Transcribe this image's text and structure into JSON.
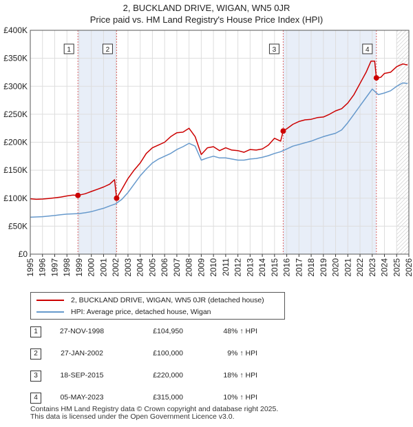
{
  "chart_data": {
    "type": "line",
    "title": "2, BUCKLAND DRIVE, WIGAN, WN5 0JR",
    "subtitle": "Price paid vs. HM Land Registry's House Price Index (HPI)",
    "xlim": [
      1995,
      2026
    ],
    "ylim": [
      0,
      400000
    ],
    "y_ticks": [
      {
        "value": 0,
        "label": "£0"
      },
      {
        "value": 50000,
        "label": "£50K"
      },
      {
        "value": 100000,
        "label": "£100K"
      },
      {
        "value": 150000,
        "label": "£150K"
      },
      {
        "value": 200000,
        "label": "£200K"
      },
      {
        "value": 250000,
        "label": "£250K"
      },
      {
        "value": 300000,
        "label": "£300K"
      },
      {
        "value": 350000,
        "label": "£350K"
      },
      {
        "value": 400000,
        "label": "£400K"
      }
    ],
    "x_ticks": [
      "1995",
      "1996",
      "1997",
      "1998",
      "1999",
      "2000",
      "2001",
      "2002",
      "2003",
      "2004",
      "2005",
      "2006",
      "2007",
      "2008",
      "2009",
      "2010",
      "2011",
      "2012",
      "2013",
      "2014",
      "2015",
      "2016",
      "2017",
      "2018",
      "2019",
      "2020",
      "2021",
      "2022",
      "2023",
      "2024",
      "2025",
      "2026"
    ],
    "shaded_spans": [
      [
        1998.9,
        2002.07
      ],
      [
        2015.71,
        2023.34
      ]
    ],
    "hatched_from": 2025.0,
    "series": [
      {
        "name": "2, BUCKLAND DRIVE, WIGAN, WN5 0JR (detached house)",
        "color": "#cc0000",
        "x": [
          1995.0,
          1995.5,
          1996.0,
          1996.5,
          1997.0,
          1997.5,
          1998.0,
          1998.5,
          1998.9,
          1999.5,
          2000.0,
          2000.5,
          2001.0,
          2001.5,
          2001.9,
          2002.07,
          2002.5,
          2003.0,
          2003.5,
          2004.0,
          2004.5,
          2005.0,
          2005.5,
          2006.0,
          2006.5,
          2007.0,
          2007.5,
          2008.0,
          2008.5,
          2009.0,
          2009.5,
          2010.0,
          2010.5,
          2011.0,
          2011.5,
          2012.0,
          2012.5,
          2013.0,
          2013.5,
          2014.0,
          2014.5,
          2015.0,
          2015.5,
          2015.71,
          2016.0,
          2016.5,
          2017.0,
          2017.5,
          2018.0,
          2018.5,
          2019.0,
          2019.5,
          2020.0,
          2020.5,
          2021.0,
          2021.5,
          2022.0,
          2022.5,
          2022.9,
          2023.2,
          2023.34,
          2023.7,
          2024.0,
          2024.5,
          2025.0,
          2025.5,
          2025.9
        ],
        "values": [
          99000,
          98000,
          98500,
          99500,
          100500,
          102000,
          104000,
          105500,
          104950,
          108000,
          112000,
          116000,
          120000,
          125000,
          133000,
          100000,
          116000,
          135000,
          150000,
          163000,
          180000,
          190000,
          195000,
          200000,
          210000,
          217000,
          218000,
          225000,
          210000,
          178000,
          190000,
          192000,
          185000,
          190000,
          186000,
          185000,
          182000,
          187000,
          186000,
          188000,
          195000,
          207000,
          202000,
          220000,
          224000,
          232000,
          237000,
          240000,
          241000,
          244000,
          245000,
          250000,
          256000,
          260000,
          270000,
          285000,
          305000,
          325000,
          345000,
          345000,
          315000,
          316000,
          323000,
          325000,
          335000,
          340000,
          338000
        ]
      },
      {
        "name": "HPI: Average price, detached house, Wigan",
        "color": "#6699cc",
        "x": [
          1995.0,
          1995.5,
          1996.0,
          1996.5,
          1997.0,
          1997.5,
          1998.0,
          1998.5,
          1999.0,
          1999.5,
          2000.0,
          2000.5,
          2001.0,
          2001.5,
          2002.0,
          2002.5,
          2003.0,
          2003.5,
          2004.0,
          2004.5,
          2005.0,
          2005.5,
          2006.0,
          2006.5,
          2007.0,
          2007.5,
          2008.0,
          2008.5,
          2009.0,
          2009.5,
          2010.0,
          2010.5,
          2011.0,
          2011.5,
          2012.0,
          2012.5,
          2013.0,
          2013.5,
          2014.0,
          2014.5,
          2015.0,
          2015.5,
          2016.0,
          2016.5,
          2017.0,
          2017.5,
          2018.0,
          2018.5,
          2019.0,
          2019.5,
          2020.0,
          2020.5,
          2021.0,
          2021.5,
          2022.0,
          2022.5,
          2023.0,
          2023.5,
          2024.0,
          2024.5,
          2025.0,
          2025.5,
          2025.9
        ],
        "values": [
          66000,
          66500,
          67000,
          68000,
          69000,
          70500,
          71500,
          72000,
          72500,
          74000,
          76000,
          79000,
          82000,
          86000,
          90000,
          98000,
          110000,
          125000,
          140000,
          152000,
          163000,
          170000,
          175000,
          180000,
          187000,
          192000,
          198000,
          193000,
          168000,
          172000,
          175000,
          172000,
          172000,
          170000,
          168000,
          168000,
          170000,
          171000,
          173000,
          176000,
          180000,
          183000,
          188000,
          193000,
          196000,
          199000,
          202000,
          206000,
          210000,
          213000,
          216000,
          222000,
          235000,
          250000,
          265000,
          280000,
          295000,
          285000,
          288000,
          292000,
          300000,
          306000,
          305000
        ]
      }
    ],
    "sales": [
      {
        "id": "1",
        "date": "27-NOV-1998",
        "x": 1998.9,
        "price": 104950,
        "price_label": "£104,950",
        "hpi_label": "48% ↑ HPI"
      },
      {
        "id": "2",
        "date": "27-JAN-2002",
        "x": 2002.07,
        "price": 100000,
        "price_label": "£100,000",
        "hpi_label": "9% ↑ HPI"
      },
      {
        "id": "3",
        "date": "18-SEP-2015",
        "x": 2015.71,
        "price": 220000,
        "price_label": "£220,000",
        "hpi_label": "18% ↑ HPI"
      },
      {
        "id": "4",
        "date": "05-MAY-2023",
        "x": 2023.34,
        "price": 315000,
        "price_label": "£315,000",
        "hpi_label": "10% ↑ HPI"
      }
    ]
  },
  "legend": {
    "property_label": "2, BUCKLAND DRIVE, WIGAN, WN5 0JR (detached house)",
    "hpi_label": "HPI: Average price, detached house, Wigan"
  },
  "footer": {
    "line1": "Contains HM Land Registry data © Crown copyright and database right 2025.",
    "line2": "This data is licensed under the Open Government Licence v3.0."
  },
  "colors": {
    "property": "#cc0000",
    "hpi": "#6699cc",
    "shade": "#e8eef8",
    "vline": "#dd6666"
  }
}
